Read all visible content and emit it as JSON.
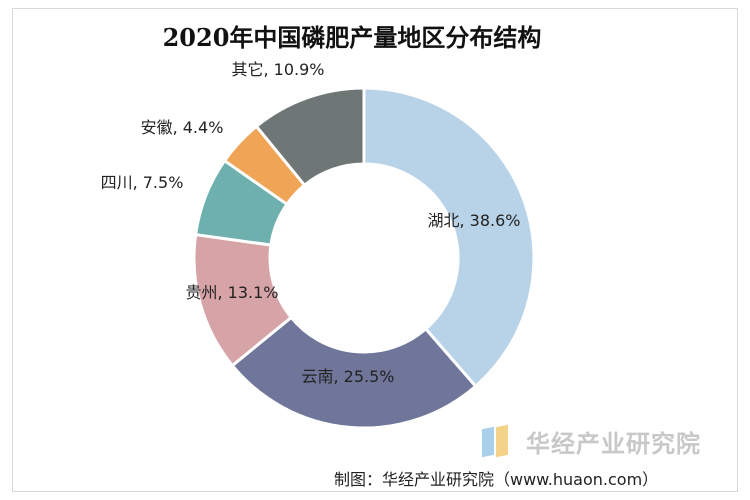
{
  "chart_data": {
    "type": "pie",
    "title": "2020年中国磷肥产量地区分布结构",
    "donut": true,
    "start_angle_deg": 0,
    "direction": "clockwise",
    "slices": [
      {
        "name": "湖北",
        "value": 38.6,
        "label": "湖北, 38.6%",
        "color": "#b8d3e8"
      },
      {
        "name": "云南",
        "value": 25.5,
        "label": "云南, 25.5%",
        "color": "#6f769a"
      },
      {
        "name": "贵州",
        "value": 13.1,
        "label": "贵州, 13.1%",
        "color": "#d6a3a6"
      },
      {
        "name": "四川",
        "value": 7.5,
        "label": "四川, 7.5%",
        "color": "#6db0ad"
      },
      {
        "name": "安徽",
        "value": 4.4,
        "label": "安徽, 4.4%",
        "color": "#f0a455"
      },
      {
        "name": "其它",
        "value": 10.9,
        "label": "其它, 10.9%",
        "color": "#6e7776"
      }
    ]
  },
  "watermark": {
    "text": "华经产业研究院",
    "url_text": "www.huaon.com"
  },
  "source": "制图：华经产业研究院（www.huaon.com）"
}
